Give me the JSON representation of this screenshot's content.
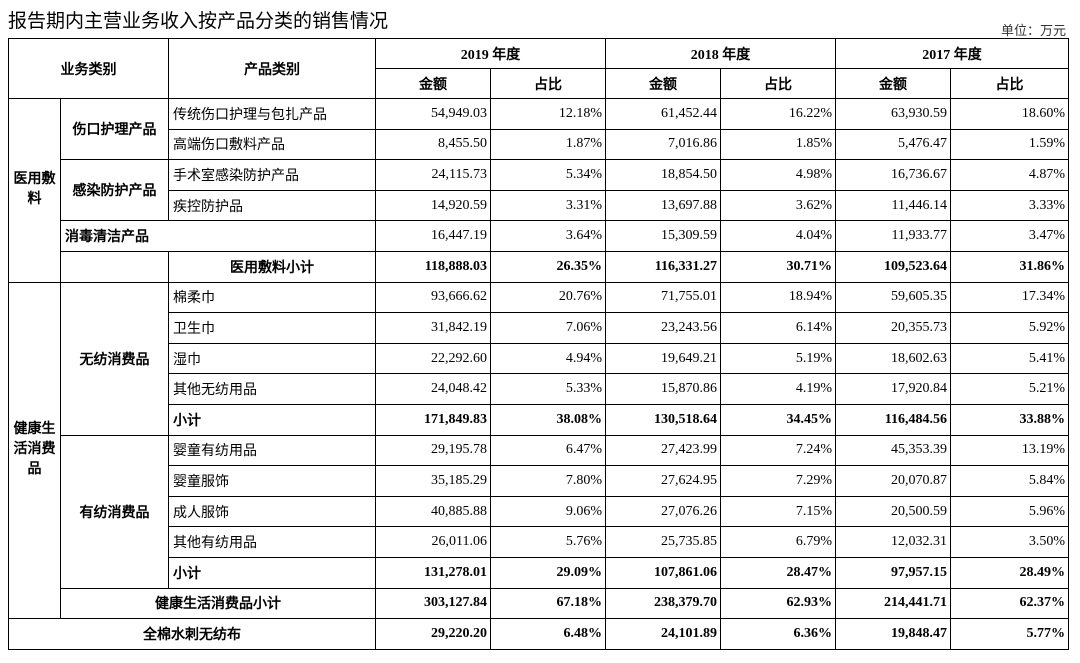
{
  "header": {
    "title": "报告期内主营业务收入按产品分类的销售情况",
    "unit": "单位：万元"
  },
  "table": {
    "columns": {
      "business": "业务类别",
      "product": "产品类别",
      "years": [
        "2019 年度",
        "2018 年度",
        "2017 年度"
      ],
      "sub": [
        "金额",
        "占比",
        "金额",
        "占比",
        "金额",
        "占比"
      ]
    },
    "groups": [
      {
        "label": "医用敷料",
        "subgroups": [
          {
            "label": "伤口护理产品",
            "rows": [
              {
                "product": "传统伤口护理与包扎产品",
                "values": [
                  "54,949.03",
                  "12.18%",
                  "61,452.44",
                  "16.22%",
                  "63,930.59",
                  "18.60%"
                ]
              },
              {
                "product": "高端伤口敷料产品",
                "values": [
                  "8,455.50",
                  "1.87%",
                  "7,016.86",
                  "1.85%",
                  "5,476.47",
                  "1.59%"
                ]
              }
            ]
          },
          {
            "label": "感染防护产品",
            "rows": [
              {
                "product": "手术室感染防护产品",
                "values": [
                  "24,115.73",
                  "5.34%",
                  "18,854.50",
                  "4.98%",
                  "16,736.67",
                  "4.87%"
                ]
              },
              {
                "product": "疾控防护品",
                "values": [
                  "14,920.59",
                  "3.31%",
                  "13,697.88",
                  "3.62%",
                  "11,446.14",
                  "3.33%"
                ]
              }
            ]
          },
          {
            "label": "消毒清洁产品",
            "values": [
              "16,447.19",
              "3.64%",
              "15,309.59",
              "4.04%",
              "11,933.77",
              "3.47%"
            ]
          }
        ],
        "subtotal": {
          "label": "医用敷料小计",
          "values": [
            "118,888.03",
            "26.35%",
            "116,331.27",
            "30.71%",
            "109,523.64",
            "31.86%"
          ]
        }
      },
      {
        "label": "健康生活消费品",
        "subgroups": [
          {
            "label": "无纺消费品",
            "rows": [
              {
                "product": "棉柔巾",
                "values": [
                  "93,666.62",
                  "20.76%",
                  "71,755.01",
                  "18.94%",
                  "59,605.35",
                  "17.34%"
                ]
              },
              {
                "product": "卫生巾",
                "values": [
                  "31,842.19",
                  "7.06%",
                  "23,243.56",
                  "6.14%",
                  "20,355.73",
                  "5.92%"
                ]
              },
              {
                "product": "湿巾",
                "values": [
                  "22,292.60",
                  "4.94%",
                  "19,649.21",
                  "5.19%",
                  "18,602.63",
                  "5.41%"
                ]
              },
              {
                "product": "其他无纺用品",
                "values": [
                  "24,048.42",
                  "5.33%",
                  "15,870.86",
                  "4.19%",
                  "17,920.84",
                  "5.21%"
                ]
              }
            ],
            "subtotal": {
              "label": "小计",
              "values": [
                "171,849.83",
                "38.08%",
                "130,518.64",
                "34.45%",
                "116,484.56",
                "33.88%"
              ]
            }
          },
          {
            "label": "有纺消费品",
            "rows": [
              {
                "product": "婴童有纺用品",
                "values": [
                  "29,195.78",
                  "6.47%",
                  "27,423.99",
                  "7.24%",
                  "45,353.39",
                  "13.19%"
                ]
              },
              {
                "product": "婴童服饰",
                "values": [
                  "35,185.29",
                  "7.80%",
                  "27,624.95",
                  "7.29%",
                  "20,070.87",
                  "5.84%"
                ]
              },
              {
                "product": "成人服饰",
                "values": [
                  "40,885.88",
                  "9.06%",
                  "27,076.26",
                  "7.15%",
                  "20,500.59",
                  "5.96%"
                ]
              },
              {
                "product": "其他有纺用品",
                "values": [
                  "26,011.06",
                  "5.76%",
                  "25,735.85",
                  "6.79%",
                  "12,032.31",
                  "3.50%"
                ]
              }
            ],
            "subtotal": {
              "label": "小计",
              "values": [
                "131,278.01",
                "29.09%",
                "107,861.06",
                "28.47%",
                "97,957.15",
                "28.49%"
              ]
            }
          }
        ],
        "subtotal": {
          "label": "健康生活消费品小计",
          "values": [
            "303,127.84",
            "67.18%",
            "238,379.70",
            "62.93%",
            "214,441.71",
            "62.37%"
          ]
        }
      }
    ],
    "total": {
      "label": "全棉水刺无纺布",
      "values": [
        "29,220.20",
        "6.48%",
        "24,101.89",
        "6.36%",
        "19,848.47",
        "5.77%"
      ]
    }
  }
}
